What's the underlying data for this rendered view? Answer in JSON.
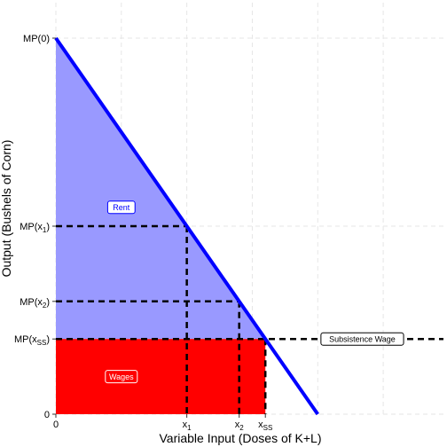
{
  "chart_data": {
    "type": "line",
    "xlabel": "Variable Input (Doses of K+L)",
    "ylabel": "Output (Bushels of Corn)",
    "xlim": [
      0,
      14.8
    ],
    "ylim": [
      0,
      10
    ],
    "grid": true,
    "grid_style": "dashed",
    "mp_curve": {
      "x": [
        0,
        10
      ],
      "y": [
        10,
        0
      ],
      "color": "#0000ff"
    },
    "x_ticks": [
      {
        "value": 0,
        "base": "0",
        "sub": ""
      },
      {
        "value": 5,
        "base": "x",
        "sub": "1"
      },
      {
        "value": 7,
        "base": "x",
        "sub": "2"
      },
      {
        "value": 8,
        "base": "x",
        "sub": "SS"
      }
    ],
    "y_ticks": [
      {
        "value": 0,
        "base": "0",
        "sub": "",
        "close": ""
      },
      {
        "value": 2,
        "base": "MP(x",
        "sub": "SS",
        "close": ")"
      },
      {
        "value": 3,
        "base": "MP(x",
        "sub": "2",
        "close": ")"
      },
      {
        "value": 5,
        "base": "MP(x",
        "sub": "1",
        "close": ")"
      },
      {
        "value": 10,
        "base": "MP(0)",
        "sub": "",
        "close": ""
      }
    ],
    "points": {
      "x1": {
        "x": 5,
        "y": 5
      },
      "x2": {
        "x": 7,
        "y": 3
      },
      "xss": {
        "x": 8,
        "y": 2
      }
    },
    "subsistence_wage": 2,
    "regions": [
      {
        "name": "Rent",
        "color": "#9999ff",
        "label_x": 2.5,
        "label_y": 5.5
      },
      {
        "name": "Wages",
        "color": "#ff0000",
        "label_x": 2.5,
        "label_y": 1.0
      }
    ],
    "annotations": [
      {
        "text": "Subsistence Wage",
        "x": 11.7,
        "y": 2.0,
        "border": "#000000"
      }
    ],
    "colors": {
      "rent": "#9999ff",
      "wages": "#ff0000",
      "curve": "#0000ff",
      "guide": "#000000",
      "grid": "#e6e6e6"
    }
  }
}
